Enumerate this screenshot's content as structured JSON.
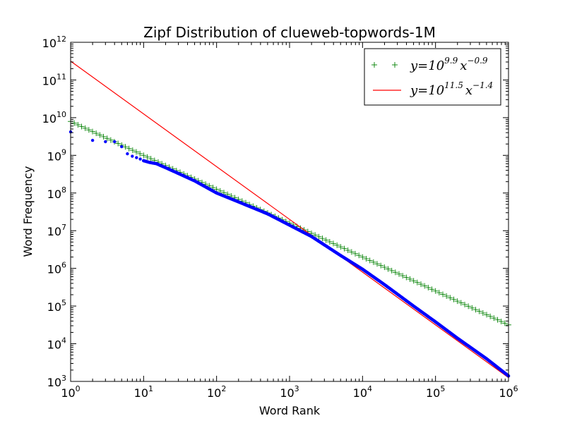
{
  "chart_data": {
    "type": "scatter",
    "title": "Zipf Distribution of clueweb-topwords-1M",
    "xlabel": "Word Rank",
    "ylabel": "Word Frequency",
    "xscale": "log",
    "yscale": "log",
    "xlim": [
      1,
      1000000
    ],
    "ylim": [
      1000,
      1000000000000
    ],
    "x_ticks": [
      {
        "base": "10",
        "exp": "0",
        "value": 1
      },
      {
        "base": "10",
        "exp": "1",
        "value": 10
      },
      {
        "base": "10",
        "exp": "2",
        "value": 100
      },
      {
        "base": "10",
        "exp": "3",
        "value": 1000
      },
      {
        "base": "10",
        "exp": "4",
        "value": 10000
      },
      {
        "base": "10",
        "exp": "5",
        "value": 100000
      },
      {
        "base": "10",
        "exp": "6",
        "value": 1000000
      }
    ],
    "y_ticks": [
      {
        "base": "10",
        "exp": "3",
        "value": 1000
      },
      {
        "base": "10",
        "exp": "4",
        "value": 10000
      },
      {
        "base": "10",
        "exp": "5",
        "value": 100000
      },
      {
        "base": "10",
        "exp": "6",
        "value": 1000000
      },
      {
        "base": "10",
        "exp": "7",
        "value": 10000000
      },
      {
        "base": "10",
        "exp": "8",
        "value": 100000000
      },
      {
        "base": "10",
        "exp": "9",
        "value": 1000000000
      },
      {
        "base": "10",
        "exp": "10",
        "value": 10000000000
      },
      {
        "base": "10",
        "exp": "11",
        "value": 100000000000
      },
      {
        "base": "10",
        "exp": "12",
        "value": 1000000000000
      }
    ],
    "grid": false,
    "legend_position": "top-right",
    "colors": {
      "observed": "#0000ff",
      "fit_green": "#008000",
      "fit_red": "#ff0000"
    },
    "series": [
      {
        "kind": "scatter-dots",
        "color": "#0000ff",
        "x": [
          1,
          2,
          3,
          4,
          5,
          6,
          7,
          8,
          9,
          10,
          12,
          15,
          20,
          30,
          50,
          100,
          200,
          500,
          1000,
          2000,
          5000,
          10000,
          20000,
          50000,
          100000,
          200000,
          500000,
          1000000
        ],
        "y": [
          4200000000,
          2500000000,
          2300000000,
          2300000000,
          1700000000,
          1100000000,
          950000000,
          870000000,
          800000000,
          720000000,
          650000000,
          600000000,
          470000000,
          330000000,
          210000000,
          100000000,
          58000000,
          28000000,
          14000000,
          7000000,
          2200000,
          950000,
          370000,
          100000,
          38000,
          14000,
          4000,
          1400
        ]
      },
      {
        "kind": "fit-plus",
        "color": "#008000",
        "legend": {
          "prefix": "y=10",
          "exp1": "9.9",
          "mid": "x",
          "exp2": "−0.9"
        },
        "log_coefficient": 9.9,
        "exponent": -0.9
      },
      {
        "kind": "fit-line",
        "color": "#ff0000",
        "legend": {
          "prefix": "y=10",
          "exp1": "11.5",
          "mid": "x",
          "exp2": "−1.4"
        },
        "log_coefficient": 11.5,
        "exponent": -1.4
      }
    ]
  }
}
